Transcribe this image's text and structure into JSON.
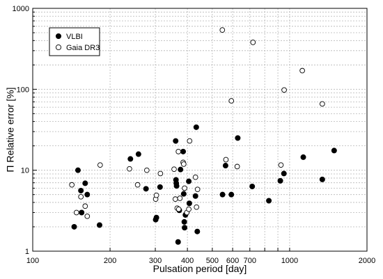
{
  "chart_data": {
    "type": "scatter",
    "title": "",
    "xlabel": "Pulsation period  [day]",
    "ylabel": "Π Relative error [%]",
    "x_scale": "log",
    "y_scale": "log",
    "xlim": [
      100,
      2000
    ],
    "ylim": [
      1,
      1000
    ],
    "grid": true,
    "legend_position": "top-left",
    "x_ticks": [
      {
        "value": 100,
        "label": "100"
      },
      {
        "value": 200,
        "label": "200"
      },
      {
        "value": 300,
        "label": "300"
      },
      {
        "value": 400,
        "label": "400"
      },
      {
        "value": 500,
        "label": "500"
      },
      {
        "value": 600,
        "label": "600"
      },
      {
        "value": 700,
        "label": "700"
      },
      {
        "value": 1000,
        "label": "1000"
      },
      {
        "value": 2000,
        "label": "2000"
      }
    ],
    "y_ticks": [
      {
        "value": 1,
        "label": "1"
      },
      {
        "value": 10,
        "label": "10"
      },
      {
        "value": 100,
        "label": "100"
      },
      {
        "value": 1000,
        "label": "1000"
      }
    ],
    "series": [
      {
        "name": "VLBI",
        "marker": "filled-circle",
        "color": "#000000",
        "points": [
          {
            "x": 145,
            "y": 2.0
          },
          {
            "x": 150,
            "y": 10.0
          },
          {
            "x": 154,
            "y": 5.6
          },
          {
            "x": 155,
            "y": 3.0
          },
          {
            "x": 160,
            "y": 6.9
          },
          {
            "x": 163,
            "y": 5.0
          },
          {
            "x": 182,
            "y": 2.1
          },
          {
            "x": 240,
            "y": 13.8
          },
          {
            "x": 258,
            "y": 15.8
          },
          {
            "x": 276,
            "y": 5.9
          },
          {
            "x": 301,
            "y": 2.45
          },
          {
            "x": 303,
            "y": 2.6
          },
          {
            "x": 313,
            "y": 6.2
          },
          {
            "x": 360,
            "y": 23.0
          },
          {
            "x": 361,
            "y": 7.6
          },
          {
            "x": 362,
            "y": 6.9
          },
          {
            "x": 363,
            "y": 6.4
          },
          {
            "x": 368,
            "y": 1.3
          },
          {
            "x": 372,
            "y": 3.2
          },
          {
            "x": 376,
            "y": 10.2
          },
          {
            "x": 385,
            "y": 17.0
          },
          {
            "x": 387,
            "y": 5.1
          },
          {
            "x": 389,
            "y": 2.3
          },
          {
            "x": 390,
            "y": 1.95
          },
          {
            "x": 393,
            "y": 2.8
          },
          {
            "x": 405,
            "y": 7.3
          },
          {
            "x": 407,
            "y": 3.9
          },
          {
            "x": 430,
            "y": 4.8
          },
          {
            "x": 433,
            "y": 34.0
          },
          {
            "x": 437,
            "y": 1.75
          },
          {
            "x": 548,
            "y": 5.0
          },
          {
            "x": 563,
            "y": 11.4
          },
          {
            "x": 593,
            "y": 5.0
          },
          {
            "x": 628,
            "y": 25.0
          },
          {
            "x": 715,
            "y": 6.3
          },
          {
            "x": 830,
            "y": 4.2
          },
          {
            "x": 920,
            "y": 7.4
          },
          {
            "x": 950,
            "y": 9.1
          },
          {
            "x": 1130,
            "y": 14.5
          },
          {
            "x": 1340,
            "y": 7.7
          },
          {
            "x": 1490,
            "y": 17.5
          }
        ]
      },
      {
        "name": "Gaia DR3",
        "marker": "open-circle",
        "color": "#000000",
        "points": [
          {
            "x": 142,
            "y": 6.6
          },
          {
            "x": 148,
            "y": 3.0
          },
          {
            "x": 154,
            "y": 4.7
          },
          {
            "x": 160,
            "y": 3.6
          },
          {
            "x": 163,
            "y": 2.7
          },
          {
            "x": 183,
            "y": 11.6
          },
          {
            "x": 238,
            "y": 10.4
          },
          {
            "x": 256,
            "y": 6.6
          },
          {
            "x": 278,
            "y": 10.0
          },
          {
            "x": 301,
            "y": 4.4
          },
          {
            "x": 303,
            "y": 4.9
          },
          {
            "x": 314,
            "y": 9.1
          },
          {
            "x": 355,
            "y": 10.3
          },
          {
            "x": 359,
            "y": 4.4
          },
          {
            "x": 365,
            "y": 3.4
          },
          {
            "x": 369,
            "y": 17.0
          },
          {
            "x": 370,
            "y": 3.3
          },
          {
            "x": 374,
            "y": 4.5
          },
          {
            "x": 385,
            "y": 12.5
          },
          {
            "x": 387,
            "y": 11.9
          },
          {
            "x": 390,
            "y": 6.0
          },
          {
            "x": 398,
            "y": 3.0
          },
          {
            "x": 405,
            "y": 3.3
          },
          {
            "x": 408,
            "y": 23.0
          },
          {
            "x": 430,
            "y": 8.2
          },
          {
            "x": 434,
            "y": 3.5
          },
          {
            "x": 438,
            "y": 5.8
          },
          {
            "x": 547,
            "y": 540.0
          },
          {
            "x": 565,
            "y": 13.5
          },
          {
            "x": 593,
            "y": 72.0
          },
          {
            "x": 625,
            "y": 11.1
          },
          {
            "x": 720,
            "y": 380.0
          },
          {
            "x": 925,
            "y": 11.6
          },
          {
            "x": 952,
            "y": 98.0
          },
          {
            "x": 1120,
            "y": 170.0
          },
          {
            "x": 1340,
            "y": 66.0
          }
        ]
      }
    ]
  }
}
